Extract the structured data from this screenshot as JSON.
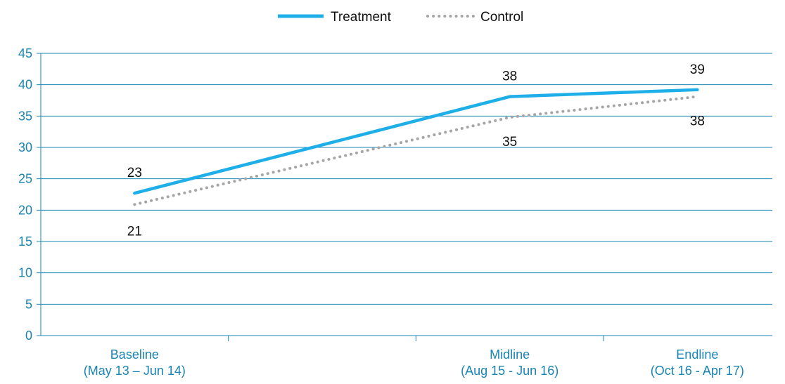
{
  "chart_data": {
    "type": "line",
    "x_positions": [
      0,
      2,
      3
    ],
    "categories": [
      [
        "Baseline",
        "(May 13 – Jun 14)"
      ],
      [
        "Midline",
        "(Aug 15 - Jun 16)"
      ],
      [
        "Endline",
        "(Oct 16 - Apr 17)"
      ]
    ],
    "series": [
      {
        "name": "Treatment",
        "values": [
          22.7,
          38.1,
          39.2
        ],
        "labels": [
          "23",
          "38",
          "39"
        ],
        "color": "#1eaee8",
        "style": "solid"
      },
      {
        "name": "Control",
        "values": [
          20.9,
          34.8,
          38.1
        ],
        "labels": [
          "21",
          "35",
          "38"
        ],
        "color": "#a6a6a6",
        "style": "dotted"
      }
    ],
    "ylim": [
      0,
      45
    ],
    "yticks": [
      "0",
      "5",
      "10",
      "15",
      "20",
      "25",
      "30",
      "35",
      "40",
      "45"
    ],
    "grid": "horizontal",
    "legend_position": "top-center",
    "axis_color": "#1a84b3"
  }
}
